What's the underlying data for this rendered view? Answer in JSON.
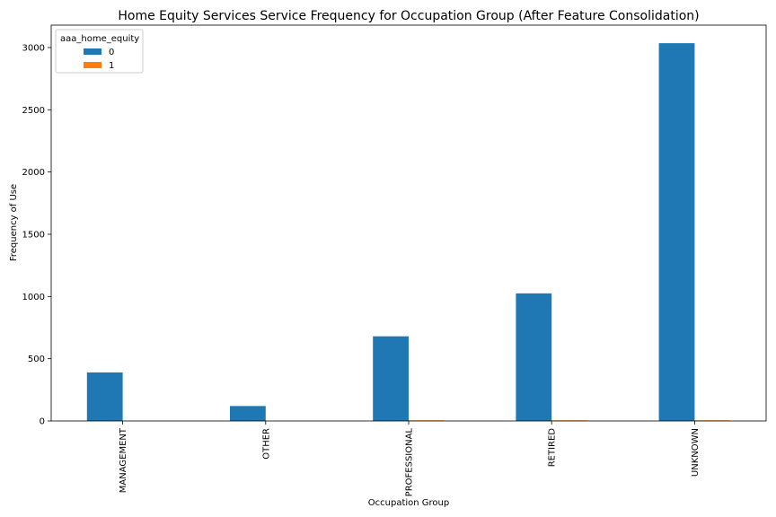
{
  "chart_data": {
    "type": "bar",
    "title": "Home Equity Services Service Frequency for Occupation Group (After Feature Consolidation)",
    "xlabel": "Occupation Group",
    "ylabel": "Frequency of Use",
    "categories": [
      "MANAGEMENT",
      "OTHER",
      "PROFESSIONAL",
      "RETIRED",
      "UNKNOWN"
    ],
    "series": [
      {
        "name": "0",
        "values": [
          390,
          120,
          680,
          1025,
          3035
        ],
        "color": "#1f77b4"
      },
      {
        "name": "1",
        "values": [
          0,
          0,
          5,
          5,
          5
        ],
        "color": "#ff7f0e"
      }
    ],
    "ylim": [
      0,
      3180
    ],
    "yticks": [
      0,
      500,
      1000,
      1500,
      2000,
      2500,
      3000
    ],
    "legend": {
      "title": "aaa_home_equity",
      "placement": "top-left"
    },
    "grid": false
  }
}
